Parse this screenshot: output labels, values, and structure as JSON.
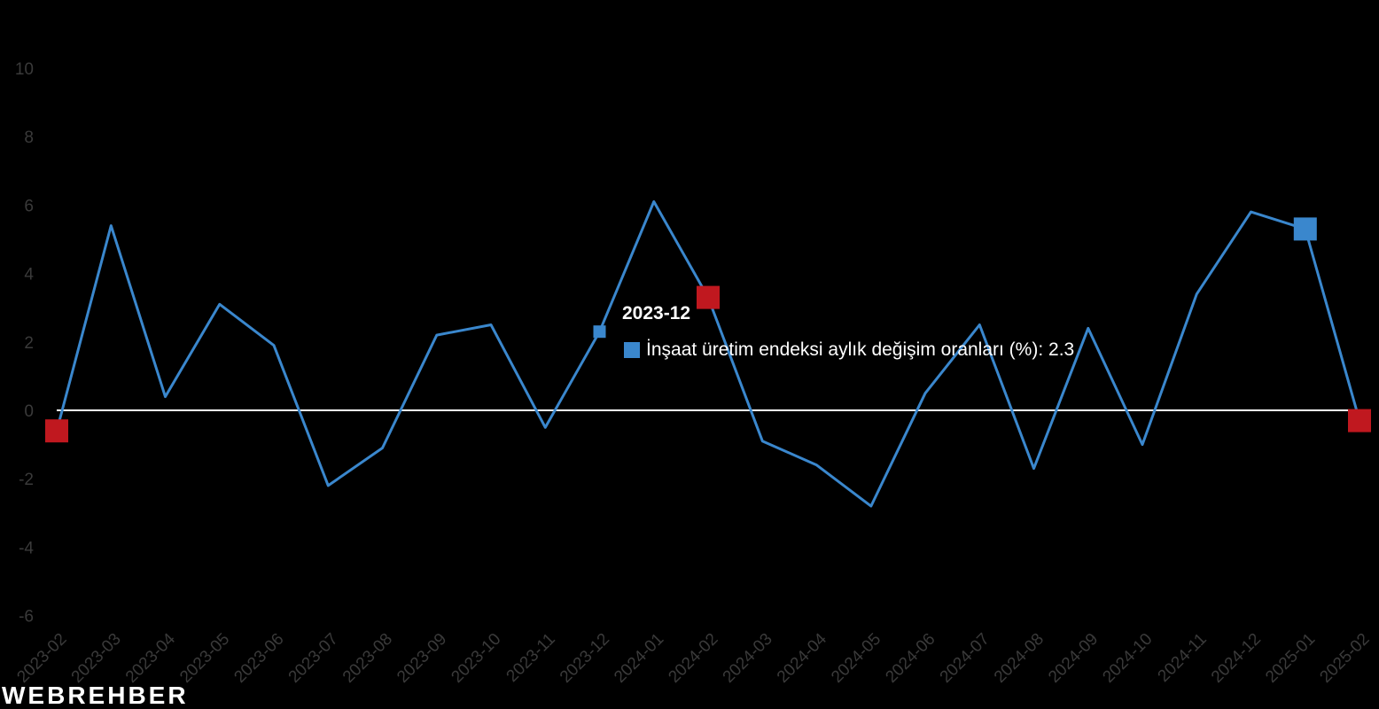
{
  "brand": {
    "logo_text": "WEBREHBER"
  },
  "colors": {
    "series": "#3a87cd",
    "highlight_neg": "#c0181f",
    "highlight_pos": "#3a87cd",
    "zero_line": "#ffffff",
    "axis_text": "#3a3a3a",
    "background": "#000000"
  },
  "tooltip": {
    "title": "2023-12",
    "label": "İnşaat üretim endeksi aylık değişim oranları (%): 2.3"
  },
  "chart_data": {
    "type": "line",
    "title": "",
    "xlabel": "",
    "ylabel": "",
    "ylim": [
      -6,
      10
    ],
    "yticks": [
      -6,
      -4,
      -2,
      0,
      2,
      4,
      6,
      8,
      10
    ],
    "grid": false,
    "legend": "none",
    "categories": [
      "2023-02",
      "2023-03",
      "2023-04",
      "2023-05",
      "2023-06",
      "2023-07",
      "2023-08",
      "2023-09",
      "2023-10",
      "2023-11",
      "2023-12",
      "2024-01",
      "2024-02",
      "2024-03",
      "2024-04",
      "2024-05",
      "2024-06",
      "2024-07",
      "2024-08",
      "2024-09",
      "2024-10",
      "2024-11",
      "2024-12",
      "2025-01",
      "2025-02"
    ],
    "series": [
      {
        "name": "İnşaat üretim endeksi aylık değişim oranları (%)",
        "values": [
          -0.6,
          5.4,
          0.4,
          3.1,
          1.9,
          -2.2,
          -1.1,
          2.2,
          2.5,
          -0.5,
          2.3,
          6.1,
          3.3,
          -0.9,
          -1.6,
          -2.8,
          0.5,
          2.5,
          -1.7,
          2.4,
          -1.0,
          3.4,
          5.8,
          5.3,
          -0.3
        ]
      }
    ],
    "highlighted_points": [
      {
        "category": "2023-02",
        "value": -0.6,
        "color": "#c0181f"
      },
      {
        "category": "2023-12",
        "value": 2.3,
        "color": "#3a87cd"
      },
      {
        "category": "2024-02",
        "value": 3.3,
        "color": "#c0181f"
      },
      {
        "category": "2025-01",
        "value": 5.3,
        "color": "#3a87cd"
      },
      {
        "category": "2025-02",
        "value": -0.3,
        "color": "#c0181f"
      }
    ]
  }
}
